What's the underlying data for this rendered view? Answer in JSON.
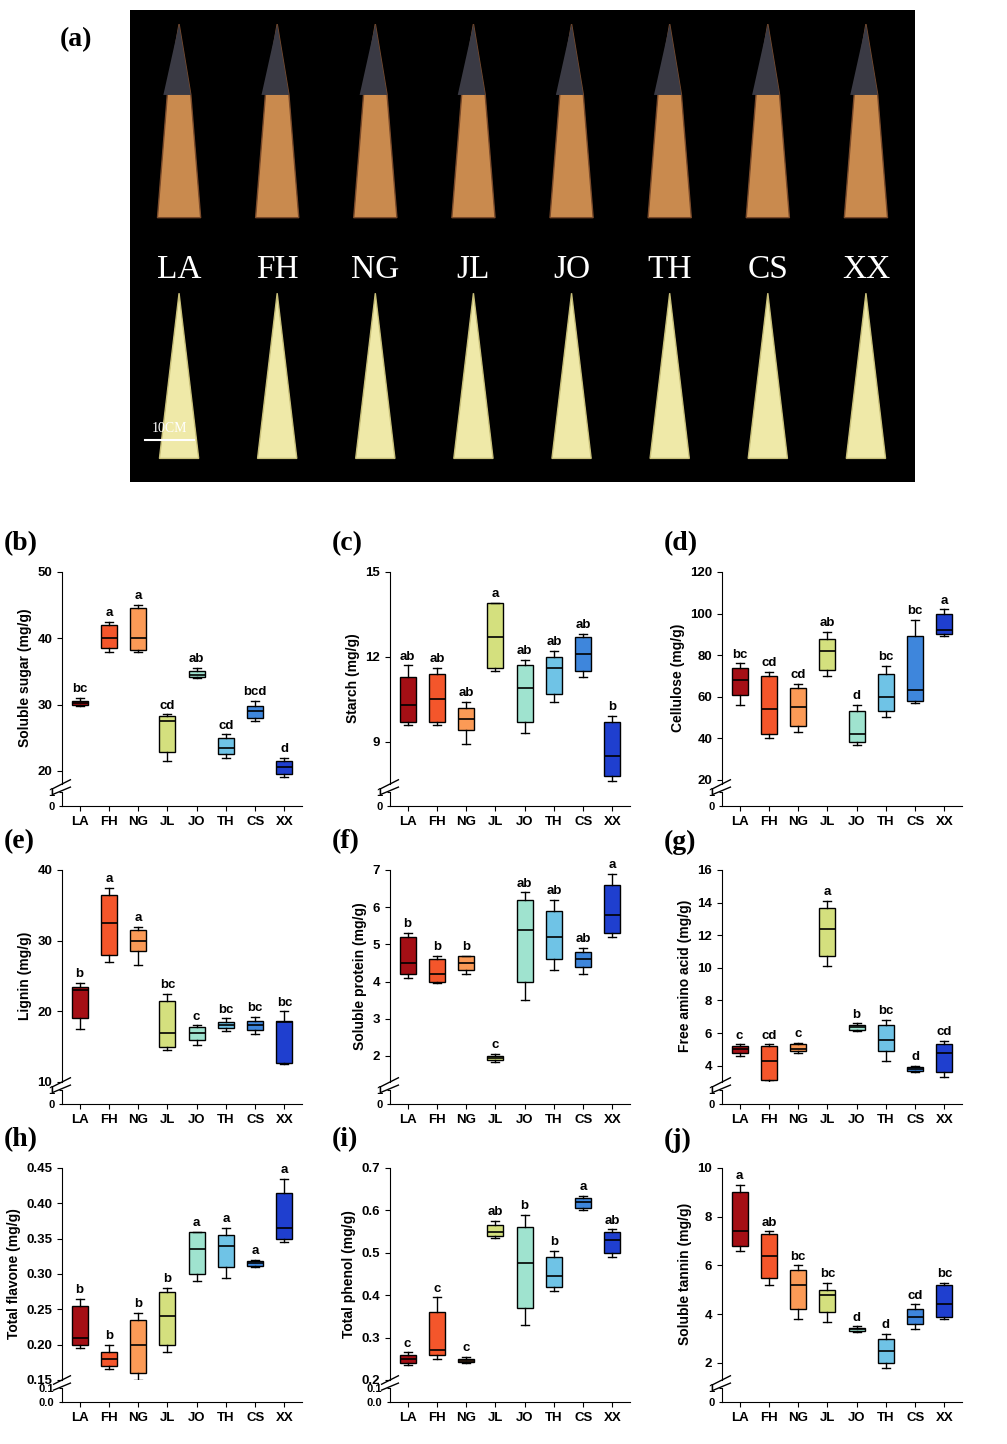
{
  "chart_data": [
    {
      "type": "image",
      "panel": "(a)",
      "labels": [
        "LA",
        "FH",
        "NG",
        "JL",
        "JO",
        "TH",
        "CS",
        "XX"
      ],
      "scale_bar": "10CM"
    },
    {
      "type": "box",
      "panel": "(b)",
      "y_label": "Soluble sugar (mg/g)",
      "categories": [
        "LA",
        "FH",
        "NG",
        "JL",
        "JO",
        "TH",
        "CS",
        "XX"
      ],
      "colors": [
        "#a50f15",
        "#f4562b",
        "#fb9a56",
        "#d4e07e",
        "#9fe3cf",
        "#6fc3e6",
        "#3e86dc",
        "#1f3fcf"
      ],
      "box": {
        "min": [
          29.8,
          38,
          38,
          21.5,
          34,
          22,
          27.5,
          19
        ],
        "q1": [
          30.0,
          38.5,
          38.3,
          22.8,
          34.2,
          22.5,
          28,
          19.5
        ],
        "median": [
          30.3,
          40,
          40,
          27.5,
          34.5,
          23.5,
          29,
          20.5
        ],
        "q3": [
          30.6,
          42,
          44.5,
          28.2,
          35,
          25,
          29.8,
          21.5
        ],
        "max": [
          31.0,
          42.5,
          45,
          28.5,
          35.5,
          25.5,
          30.5,
          22
        ]
      },
      "letters": [
        "bc",
        "a",
        "a",
        "cd",
        "ab",
        "cd",
        "bcd",
        "d"
      ],
      "ylim": [
        18,
        50
      ],
      "yticks": [
        20,
        30,
        40,
        50
      ],
      "y_break": {
        "ylim": [
          0,
          1
        ],
        "yticks": [
          0,
          1
        ]
      }
    },
    {
      "type": "box",
      "panel": "(c)",
      "y_label": "Starch (mg/g)",
      "categories": [
        "LA",
        "FH",
        "NG",
        "JL",
        "JO",
        "TH",
        "CS",
        "XX"
      ],
      "colors": [
        "#a50f15",
        "#f4562b",
        "#fb9a56",
        "#d4e07e",
        "#9fe3cf",
        "#6fc3e6",
        "#3e86dc",
        "#1f3fcf"
      ],
      "box": {
        "min": [
          9.6,
          9.6,
          8.9,
          11.5,
          9.3,
          10.4,
          11.3,
          7.6
        ],
        "q1": [
          9.7,
          9.7,
          9.4,
          11.6,
          9.7,
          10.7,
          11.5,
          7.8
        ],
        "median": [
          10.3,
          10.5,
          9.8,
          12.7,
          10.9,
          11.6,
          12.1,
          8.5
        ],
        "q3": [
          11.3,
          11.4,
          10.2,
          13.9,
          11.7,
          12.0,
          12.7,
          9.7
        ],
        "max": [
          11.7,
          11.6,
          10.4,
          13.9,
          11.9,
          12.2,
          12.8,
          9.9
        ]
      },
      "letters": [
        "ab",
        "ab",
        "ab",
        "a",
        "ab",
        "ab",
        "ab",
        "b"
      ],
      "ylim": [
        7.5,
        15
      ],
      "yticks": [
        9,
        12,
        15
      ],
      "y_break": {
        "ylim": [
          0,
          1
        ],
        "yticks": [
          0,
          1
        ]
      }
    },
    {
      "type": "box",
      "panel": "(d)",
      "y_label": "Cellulose (mg/g)",
      "categories": [
        "LA",
        "FH",
        "NG",
        "JL",
        "JO",
        "TH",
        "CS",
        "XX"
      ],
      "colors": [
        "#a50f15",
        "#f4562b",
        "#fb9a56",
        "#d4e07e",
        "#9fe3cf",
        "#6fc3e6",
        "#3e86dc",
        "#1f3fcf"
      ],
      "box": {
        "min": [
          56,
          40,
          43,
          70,
          37,
          50,
          57,
          89
        ],
        "q1": [
          61,
          42,
          46,
          73,
          38,
          53,
          58,
          90
        ],
        "median": [
          68,
          54,
          55,
          82,
          42,
          60,
          63,
          92
        ],
        "q3": [
          74,
          70,
          64,
          88,
          53,
          71,
          89,
          100
        ],
        "max": [
          76,
          72,
          66,
          91,
          56,
          75,
          97,
          102
        ]
      },
      "letters": [
        "bc",
        "cd",
        "cd",
        "ab",
        "d",
        "bc",
        "bc",
        "a"
      ],
      "ylim": [
        18,
        120
      ],
      "yticks": [
        20,
        40,
        60,
        80,
        100,
        120
      ],
      "y_break": {
        "ylim": [
          0,
          1
        ],
        "yticks": [
          0,
          1
        ]
      }
    },
    {
      "type": "box",
      "panel": "(e)",
      "y_label": "Lignin (mg/g)",
      "categories": [
        "LA",
        "FH",
        "NG",
        "JL",
        "JO",
        "TH",
        "CS",
        "XX"
      ],
      "colors": [
        "#a50f15",
        "#f4562b",
        "#fb9a56",
        "#d4e07e",
        "#9fe3cf",
        "#6fc3e6",
        "#3e86dc",
        "#1f3fcf"
      ],
      "box": {
        "min": [
          17.5,
          27,
          26.5,
          14.5,
          15.3,
          17.2,
          16.8,
          12.5
        ],
        "q1": [
          19,
          28,
          28.5,
          15,
          16,
          17.7,
          17.3,
          12.7
        ],
        "median": [
          23,
          32.5,
          30,
          17,
          17,
          18,
          18,
          18.5
        ],
        "q3": [
          23.5,
          36.5,
          31.5,
          21.5,
          17.8,
          18.5,
          18.7,
          18.7
        ],
        "max": [
          24,
          37.5,
          32,
          22.5,
          18,
          19,
          19.2,
          20
        ]
      },
      "letters": [
        "b",
        "a",
        "a",
        "bc",
        "c",
        "bc",
        "bc",
        "bc"
      ],
      "ylim": [
        10,
        40
      ],
      "yticks": [
        10,
        20,
        30,
        40
      ],
      "y_break": {
        "ylim": [
          0,
          1
        ],
        "yticks": [
          0,
          1
        ]
      }
    },
    {
      "type": "box",
      "panel": "(f)",
      "y_label": "Soluble protein (mg/g)",
      "categories": [
        "LA",
        "FH",
        "NG",
        "JL",
        "JO",
        "TH",
        "CS",
        "XX"
      ],
      "colors": [
        "#a50f15",
        "#f4562b",
        "#fb9a56",
        "#d4e07e",
        "#9fe3cf",
        "#6fc3e6",
        "#3e86dc",
        "#1f3fcf"
      ],
      "box": {
        "min": [
          4.1,
          3.95,
          4.2,
          1.85,
          3.5,
          4.3,
          4.2,
          5.2
        ],
        "q1": [
          4.2,
          4.0,
          4.3,
          1.9,
          4.0,
          4.6,
          4.4,
          5.3
        ],
        "median": [
          4.5,
          4.2,
          4.5,
          1.95,
          5.4,
          5.2,
          4.6,
          5.8
        ],
        "q3": [
          5.2,
          4.6,
          4.7,
          2.0,
          6.2,
          5.9,
          4.8,
          6.6
        ],
        "max": [
          5.3,
          4.7,
          4.7,
          2.05,
          6.4,
          6.2,
          4.9,
          6.9
        ]
      },
      "letters": [
        "b",
        "b",
        "b",
        "c",
        "ab",
        "ab",
        "ab",
        "a"
      ],
      "ylim": [
        1.3,
        7
      ],
      "yticks": [
        2,
        3,
        4,
        5,
        6,
        7
      ],
      "y_break": {
        "ylim": [
          0,
          1
        ],
        "yticks": [
          0,
          1
        ]
      }
    },
    {
      "type": "box",
      "panel": "(g)",
      "y_label": "Free amino acid (mg/g)",
      "categories": [
        "LA",
        "FH",
        "NG",
        "JL",
        "JO",
        "TH",
        "CS",
        "XX"
      ],
      "colors": [
        "#a50f15",
        "#f4562b",
        "#fb9a56",
        "#d4e07e",
        "#9fe3cf",
        "#6fc3e6",
        "#3e86dc",
        "#1f3fcf"
      ],
      "box": {
        "min": [
          4.6,
          3.0,
          4.8,
          10.1,
          6.1,
          4.3,
          3.6,
          3.3
        ],
        "q1": [
          4.8,
          3.1,
          4.9,
          10.7,
          6.2,
          4.9,
          3.7,
          3.6
        ],
        "median": [
          5.0,
          4.3,
          5.0,
          12.4,
          6.4,
          5.6,
          3.8,
          4.8
        ],
        "q3": [
          5.2,
          5.2,
          5.3,
          13.7,
          6.5,
          6.5,
          3.9,
          5.3
        ],
        "max": [
          5.3,
          5.3,
          5.4,
          14.1,
          6.6,
          6.8,
          4.0,
          5.5
        ]
      },
      "letters": [
        "c",
        "cd",
        "c",
        "a",
        "b",
        "bc",
        "d",
        "cd"
      ],
      "ylim": [
        3,
        16
      ],
      "yticks": [
        4,
        6,
        8,
        10,
        12,
        14,
        16
      ],
      "y_break": {
        "ylim": [
          0,
          1
        ],
        "yticks": [
          0,
          1
        ]
      }
    },
    {
      "type": "box",
      "panel": "(h)",
      "y_label": "Total flavone (mg/g)",
      "categories": [
        "LA",
        "FH",
        "NG",
        "JL",
        "JO",
        "TH",
        "CS",
        "XX"
      ],
      "colors": [
        "#a50f15",
        "#f4562b",
        "#fb9a56",
        "#d4e07e",
        "#9fe3cf",
        "#6fc3e6",
        "#3e86dc",
        "#1f3fcf"
      ],
      "box": {
        "min": [
          0.195,
          0.165,
          0.15,
          0.19,
          0.29,
          0.295,
          0.31,
          0.345
        ],
        "q1": [
          0.2,
          0.17,
          0.16,
          0.2,
          0.3,
          0.31,
          0.312,
          0.35
        ],
        "median": [
          0.21,
          0.18,
          0.2,
          0.24,
          0.335,
          0.34,
          0.315,
          0.365
        ],
        "q3": [
          0.255,
          0.19,
          0.235,
          0.275,
          0.36,
          0.355,
          0.318,
          0.415
        ],
        "max": [
          0.265,
          0.2,
          0.245,
          0.28,
          0.36,
          0.365,
          0.32,
          0.435
        ]
      },
      "letters": [
        "b",
        "b",
        "b",
        "b",
        "a",
        "a",
        "a",
        "a"
      ],
      "ylim": [
        0.15,
        0.45
      ],
      "yticks": [
        0.15,
        {
          "value": 0.2,
          "label": "0.20"
        },
        0.25,
        {
          "value": 0.3,
          "label": "0.30"
        },
        0.35,
        {
          "value": 0.4,
          "label": "0.40"
        },
        0.45
      ],
      "y_break": {
        "ylim": [
          0,
          0.1
        ],
        "yticks": [
          {
            "value": 0,
            "label": "0.0"
          },
          0.1
        ]
      }
    },
    {
      "type": "box",
      "panel": "(i)",
      "y_label": "Total phenol (mg/g)",
      "categories": [
        "LA",
        "FH",
        "NG",
        "JL",
        "JO",
        "TH",
        "CS",
        "XX"
      ],
      "colors": [
        "#a50f15",
        "#f4562b",
        "#fb9a56",
        "#d4e07e",
        "#9fe3cf",
        "#6fc3e6",
        "#3e86dc",
        "#1f3fcf"
      ],
      "box": {
        "min": [
          0.235,
          0.25,
          0.24,
          0.535,
          0.33,
          0.41,
          0.6,
          0.49
        ],
        "q1": [
          0.24,
          0.26,
          0.243,
          0.54,
          0.37,
          0.42,
          0.605,
          0.5
        ],
        "median": [
          0.25,
          0.27,
          0.245,
          0.55,
          0.475,
          0.445,
          0.62,
          0.53
        ],
        "q3": [
          0.26,
          0.36,
          0.25,
          0.565,
          0.56,
          0.49,
          0.63,
          0.55
        ],
        "max": [
          0.265,
          0.395,
          0.255,
          0.575,
          0.59,
          0.505,
          0.635,
          0.555
        ]
      },
      "letters": [
        "c",
        "c",
        "c",
        "ab",
        "b",
        "b",
        "a",
        "ab"
      ],
      "ylim": [
        0.2,
        0.7
      ],
      "yticks": [
        0.2,
        0.3,
        0.4,
        0.5,
        0.6,
        0.7
      ],
      "y_break": {
        "ylim": [
          0,
          0.1
        ],
        "yticks": [
          {
            "value": 0,
            "label": "0.0"
          },
          0.1
        ]
      }
    },
    {
      "type": "box",
      "panel": "(j)",
      "y_label": "Soluble tannin (mg/g)",
      "categories": [
        "LA",
        "FH",
        "NG",
        "JL",
        "JO",
        "TH",
        "CS",
        "XX"
      ],
      "colors": [
        "#a50f15",
        "#f4562b",
        "#fb9a56",
        "#d4e07e",
        "#9fe3cf",
        "#6fc3e6",
        "#3e86dc",
        "#1f3fcf"
      ],
      "box": {
        "min": [
          6.6,
          5.2,
          3.8,
          3.7,
          3.25,
          1.8,
          3.4,
          3.8
        ],
        "q1": [
          6.8,
          5.5,
          4.2,
          4.1,
          3.3,
          2.0,
          3.6,
          3.9
        ],
        "median": [
          7.4,
          6.4,
          5.2,
          4.8,
          3.4,
          2.5,
          3.9,
          4.4
        ],
        "q3": [
          9.0,
          7.3,
          5.8,
          5.0,
          3.45,
          3.0,
          4.2,
          5.2
        ],
        "max": [
          9.3,
          7.4,
          6.0,
          5.3,
          3.5,
          3.2,
          4.4,
          5.3
        ]
      },
      "letters": [
        "a",
        "ab",
        "bc",
        "bc",
        "d",
        "d",
        "cd",
        "bc"
      ],
      "ylim": [
        1.3,
        10
      ],
      "yticks": [
        2,
        4,
        6,
        8,
        10
      ],
      "y_break": {
        "ylim": [
          0,
          1
        ],
        "yticks": [
          0,
          1
        ]
      }
    }
  ]
}
